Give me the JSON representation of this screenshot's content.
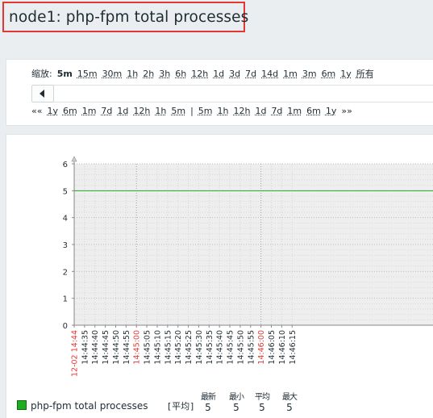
{
  "page": {
    "title": "node1: php-fpm total processes"
  },
  "zoom": {
    "label": "缩放:",
    "items": [
      "5m",
      "15m",
      "30m",
      "1h",
      "2h",
      "3h",
      "6h",
      "12h",
      "1d",
      "3d",
      "7d",
      "14d",
      "1m",
      "3m",
      "6m",
      "1y",
      "所有"
    ],
    "selected": "5m"
  },
  "period": {
    "back_marker": "««",
    "back_items": [
      "1y",
      "6m",
      "1m",
      "7d",
      "1d",
      "12h",
      "1h",
      "5m"
    ],
    "separator": "|",
    "forward_items": [
      "5m",
      "1h",
      "12h",
      "1d",
      "7d",
      "1m",
      "6m",
      "1y"
    ],
    "forward_marker": "»»"
  },
  "legend": {
    "series_name": "php-fpm total processes",
    "func": "[平均]",
    "color": "#1eac21",
    "stats": [
      {
        "label": "最新",
        "value": "5"
      },
      {
        "label": "最小",
        "value": "5"
      },
      {
        "label": "平均",
        "value": "5"
      },
      {
        "label": "最大",
        "value": "5"
      }
    ]
  },
  "chart_data": {
    "type": "line",
    "title": "node1: php-fpm total processes",
    "xlabel": "",
    "ylabel": "",
    "ylim": [
      0,
      6
    ],
    "yticks": [
      0,
      1,
      2,
      3,
      4,
      5,
      6
    ],
    "grid": true,
    "x_ticks": [
      {
        "label": "12-02 14:44",
        "highlight": true
      },
      {
        "label": "14:44:35",
        "highlight": false
      },
      {
        "label": "14:44:40",
        "highlight": false
      },
      {
        "label": "14:44:45",
        "highlight": false
      },
      {
        "label": "14:44:50",
        "highlight": false
      },
      {
        "label": "14:44:55",
        "highlight": false
      },
      {
        "label": "14:45:00",
        "highlight": true
      },
      {
        "label": "14:45:05",
        "highlight": false
      },
      {
        "label": "14:45:10",
        "highlight": false
      },
      {
        "label": "14:45:15",
        "highlight": false
      },
      {
        "label": "14:45:20",
        "highlight": false
      },
      {
        "label": "14:45:25",
        "highlight": false
      },
      {
        "label": "14:45:30",
        "highlight": false
      },
      {
        "label": "14:45:35",
        "highlight": false
      },
      {
        "label": "14:45:40",
        "highlight": false
      },
      {
        "label": "14:45:45",
        "highlight": false
      },
      {
        "label": "14:45:50",
        "highlight": false
      },
      {
        "label": "14:45:55",
        "highlight": false
      },
      {
        "label": "14:46:00",
        "highlight": true
      },
      {
        "label": "14:46:05",
        "highlight": false
      },
      {
        "label": "14:46:10",
        "highlight": false
      },
      {
        "label": "14:46:15",
        "highlight": false
      }
    ],
    "highlight_color": "#e33734",
    "series": [
      {
        "name": "php-fpm total processes",
        "color": "#1eac21",
        "x_start": "12-02 14:44",
        "x_end": "14:46:15",
        "values": [
          5,
          5
        ]
      }
    ]
  }
}
